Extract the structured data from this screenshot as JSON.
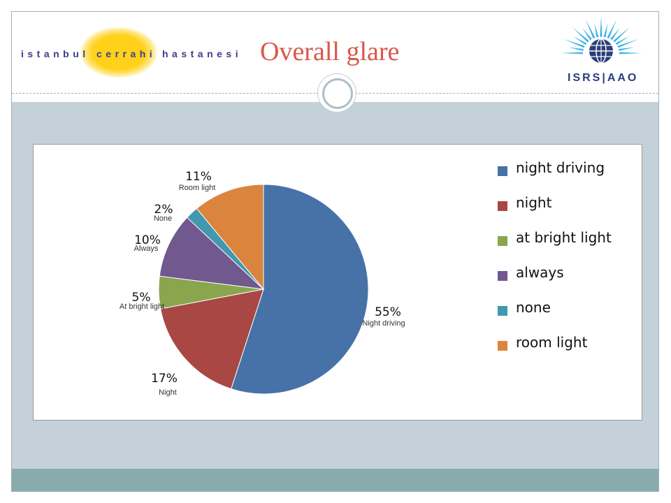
{
  "header": {
    "logo_left": {
      "word1": "istanbul",
      "word2": "cerrahi",
      "word3": "hastanesi"
    },
    "title": "Overall glare",
    "logo_right": {
      "text": "ISRS|AAO"
    }
  },
  "colors": {
    "title": "#d9574a",
    "band": "#c5d1d8",
    "footer": "#8aabad"
  },
  "chart_data": {
    "type": "pie",
    "title": "",
    "legend_position": "right",
    "slices": [
      {
        "label": "night driving",
        "value": 55,
        "pct_label": "55%",
        "sub_label": "Night driving",
        "color": "#4672a8"
      },
      {
        "label": "night",
        "value": 17,
        "pct_label": "17%",
        "sub_label": "Night",
        "color": "#a94744"
      },
      {
        "label": "at bright light",
        "value": 5,
        "pct_label": "5%",
        "sub_label": "At bright light",
        "color": "#89a64e"
      },
      {
        "label": "always",
        "value": 10,
        "pct_label": "10%",
        "sub_label": "Always",
        "color": "#71588f"
      },
      {
        "label": "none",
        "value": 2,
        "pct_label": "2%",
        "sub_label": "None",
        "color": "#4198af"
      },
      {
        "label": "room light",
        "value": 11,
        "pct_label": "11%",
        "sub_label": "Room  light",
        "color": "#db843d"
      }
    ]
  }
}
